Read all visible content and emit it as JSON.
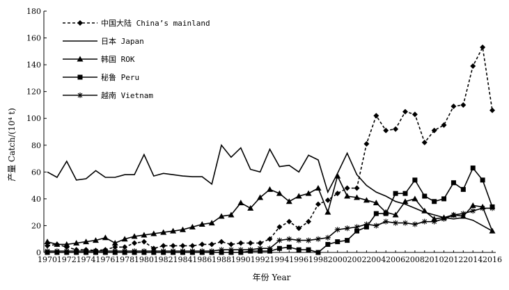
{
  "chart_data": {
    "type": "line",
    "title": "",
    "xlabel": "年份 Year",
    "ylabel": "产量 Catch/(10⁴ t)",
    "ylim": [
      0,
      180
    ],
    "yticks": [
      0,
      20,
      40,
      60,
      80,
      100,
      120,
      140,
      160,
      180
    ],
    "xticks": [
      1970,
      1972,
      1974,
      1976,
      1978,
      1980,
      1982,
      1984,
      1986,
      1988,
      1990,
      1992,
      1994,
      1996,
      1998,
      2000,
      2002,
      2004,
      2006,
      2008,
      2010,
      2012,
      2014,
      2016
    ],
    "grid": false,
    "legend_position": "top-left",
    "x": [
      1970,
      1971,
      1972,
      1973,
      1974,
      1975,
      1976,
      1977,
      1978,
      1979,
      1980,
      1981,
      1982,
      1983,
      1984,
      1985,
      1986,
      1987,
      1988,
      1989,
      1990,
      1991,
      1992,
      1993,
      1994,
      1995,
      1996,
      1997,
      1998,
      1999,
      2000,
      2001,
      2002,
      2003,
      2004,
      2005,
      2006,
      2007,
      2008,
      2009,
      2010,
      2011,
      2012,
      2013,
      2014,
      2015,
      2016
    ],
    "series": [
      {
        "name": "中国大陆 China’s mainland",
        "style": "dashed",
        "marker": "diamond",
        "values": [
          5,
          6,
          4,
          2,
          2,
          1.5,
          2,
          4,
          4,
          7,
          8,
          3,
          5,
          5,
          5,
          5,
          6,
          6,
          8,
          6,
          7,
          7,
          7,
          10,
          19,
          23,
          18,
          23,
          36,
          39,
          44,
          48,
          48,
          81,
          102,
          91,
          92,
          105,
          103,
          82,
          91,
          95,
          109,
          110,
          139,
          153,
          106
        ]
      },
      {
        "name": "日本 Japan",
        "style": "solid",
        "marker": "none",
        "values": [
          60,
          56,
          68,
          54,
          55,
          61,
          56,
          56,
          58,
          58,
          73,
          57,
          59,
          58,
          57,
          56.5,
          56.5,
          51,
          80,
          71,
          78,
          62,
          60,
          77,
          64,
          65,
          60,
          72.5,
          69,
          45,
          59,
          74,
          58,
          50,
          45,
          42,
          38,
          36,
          33,
          30,
          28,
          26,
          25,
          26,
          24,
          20,
          16
        ]
      },
      {
        "name": "韩国 ROK",
        "style": "solid",
        "marker": "triangle",
        "values": [
          8,
          6,
          6,
          7,
          8,
          9,
          11,
          7,
          10,
          12,
          13,
          14,
          15,
          16,
          17,
          19,
          21,
          22,
          27,
          28,
          37,
          33,
          41,
          47,
          44,
          38,
          42,
          44,
          48,
          30,
          57,
          42,
          41,
          39,
          37,
          30,
          28,
          38,
          40,
          31,
          25,
          26,
          28,
          27,
          35,
          34,
          16
        ]
      },
      {
        "name": "秘鲁 Peru",
        "style": "solid",
        "marker": "square",
        "values": [
          0,
          0,
          0,
          0,
          0,
          0,
          0,
          0,
          0,
          0,
          0,
          0,
          0,
          0,
          0,
          0,
          0,
          0,
          0,
          0,
          0,
          1,
          1,
          1,
          3,
          4,
          2,
          2,
          0,
          6,
          8,
          9,
          16,
          19,
          29,
          29,
          44,
          44,
          54,
          42,
          38,
          40,
          52,
          47,
          63,
          54,
          34
        ]
      },
      {
        "name": "越南 Vietnam",
        "style": "solid",
        "marker": "asterisk",
        "values": [
          1,
          1,
          1,
          1,
          1,
          1,
          1,
          1,
          1,
          1,
          1,
          1,
          1,
          1,
          1,
          1,
          1,
          1,
          2,
          2,
          2,
          2,
          3,
          3,
          9,
          10,
          9,
          9,
          10,
          11,
          17,
          18,
          19,
          21,
          20,
          23,
          22,
          22,
          21,
          23,
          23,
          25,
          28,
          29,
          31,
          33,
          33
        ]
      }
    ]
  }
}
